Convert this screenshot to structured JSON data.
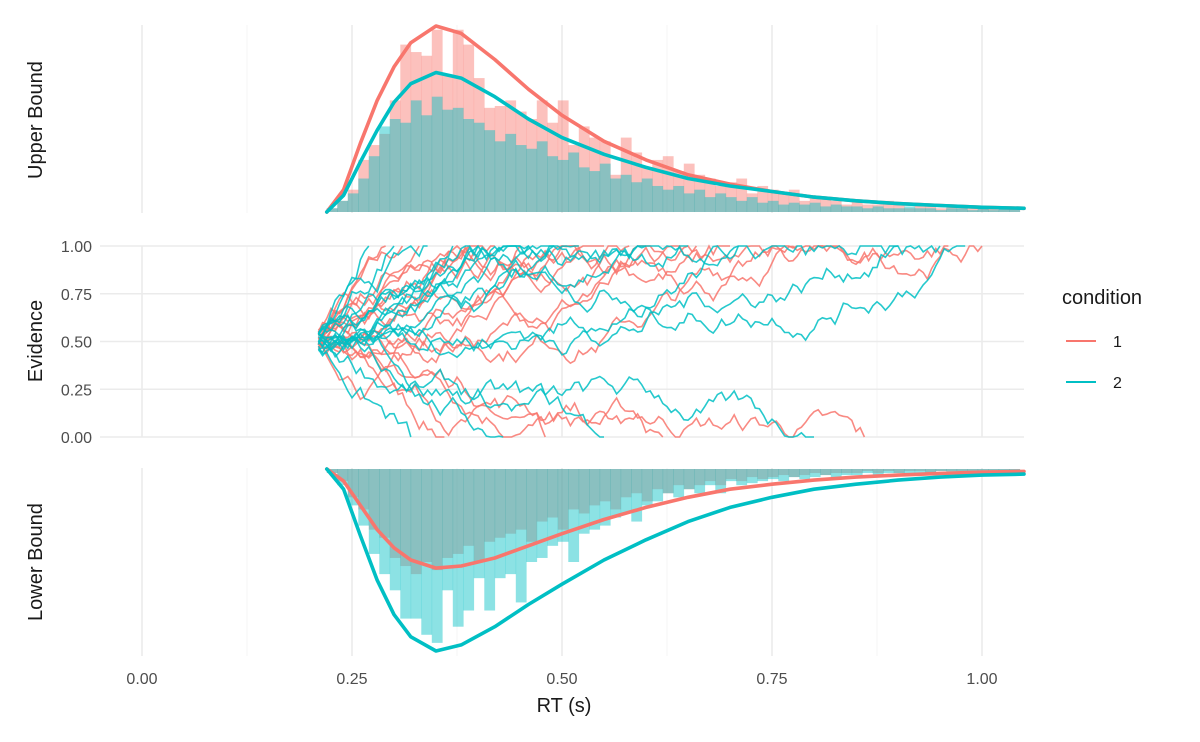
{
  "chart_data": {
    "type": "area",
    "title": "",
    "xlabel": "RT (s)",
    "xlim": [
      -0.05,
      1.05
    ],
    "x_ticks": [
      "0.00",
      "0.25",
      "0.50",
      "0.75",
      "1.00"
    ],
    "x_tick_values": [
      0.0,
      0.25,
      0.5,
      0.75,
      1.0
    ],
    "grid": true,
    "legend": {
      "title": "condition",
      "placement": "right",
      "entries": [
        {
          "label": "1",
          "color": "#F8766D"
        },
        {
          "label": "2",
          "color": "#00BFC4"
        }
      ]
    },
    "panels": [
      {
        "name": "upper",
        "ylabel": "Upper Bound",
        "type": "histogram+density",
        "series": [
          {
            "name": "1",
            "color": "#F8766D",
            "density_curve": {
              "x": [
                0.22,
                0.24,
                0.26,
                0.28,
                0.3,
                0.32,
                0.35,
                0.38,
                0.42,
                0.46,
                0.5,
                0.55,
                0.6,
                0.65,
                0.7,
                0.75,
                0.8,
                0.85,
                0.9,
                0.95,
                1.0,
                1.05
              ],
              "y": [
                0.0,
                0.12,
                0.37,
                0.6,
                0.78,
                0.91,
                1.0,
                0.96,
                0.82,
                0.66,
                0.52,
                0.38,
                0.28,
                0.2,
                0.15,
                0.11,
                0.08,
                0.06,
                0.045,
                0.035,
                0.025,
                0.02
              ]
            },
            "histogram": {
              "bin_start": 0.22,
              "bin_width": 0.0125,
              "heights": [
                0.02,
                0.06,
                0.12,
                0.28,
                0.36,
                0.42,
                0.6,
                0.9,
                0.86,
                0.84,
                0.98,
                0.74,
                0.98,
                0.9,
                0.72,
                0.56,
                0.57,
                0.6,
                0.54,
                0.5,
                0.6,
                0.48,
                0.6,
                0.36,
                0.46,
                0.4,
                0.38,
                0.2,
                0.4,
                0.32,
                0.24,
                0.28,
                0.3,
                0.22,
                0.26,
                0.2,
                0.18,
                0.14,
                0.16,
                0.18,
                0.1,
                0.14,
                0.12,
                0.1,
                0.12,
                0.06,
                0.08,
                0.08,
                0.06,
                0.04,
                0.06,
                0.04,
                0.04,
                0.06,
                0.04,
                0.02,
                0.04,
                0.03,
                0.02,
                0.03,
                0.02,
                0.02,
                0.02,
                0.03,
                0.02,
                0.02
              ]
            }
          },
          {
            "name": "2",
            "color": "#00BFC4",
            "density_curve": {
              "x": [
                0.22,
                0.24,
                0.26,
                0.28,
                0.3,
                0.32,
                0.35,
                0.38,
                0.42,
                0.46,
                0.5,
                0.55,
                0.6,
                0.65,
                0.7,
                0.75,
                0.8,
                0.85,
                0.9,
                0.95,
                1.0,
                1.05
              ],
              "y": [
                0.0,
                0.09,
                0.27,
                0.44,
                0.59,
                0.69,
                0.75,
                0.72,
                0.62,
                0.5,
                0.4,
                0.31,
                0.24,
                0.18,
                0.14,
                0.11,
                0.08,
                0.06,
                0.045,
                0.035,
                0.025,
                0.02
              ]
            },
            "histogram": {
              "bin_start": 0.22,
              "bin_width": 0.0125,
              "heights": [
                0.02,
                0.06,
                0.1,
                0.18,
                0.3,
                0.46,
                0.5,
                0.48,
                0.6,
                0.52,
                0.62,
                0.55,
                0.56,
                0.5,
                0.48,
                0.44,
                0.38,
                0.42,
                0.36,
                0.34,
                0.38,
                0.3,
                0.28,
                0.32,
                0.24,
                0.22,
                0.26,
                0.18,
                0.2,
                0.16,
                0.18,
                0.14,
                0.12,
                0.14,
                0.1,
                0.12,
                0.08,
                0.1,
                0.08,
                0.06,
                0.08,
                0.05,
                0.06,
                0.04,
                0.05,
                0.04,
                0.05,
                0.03,
                0.04,
                0.03,
                0.03,
                0.02,
                0.03,
                0.02,
                0.02,
                0.03,
                0.02,
                0.02,
                0.01,
                0.02,
                0.02,
                0.01,
                0.02,
                0.01,
                0.02,
                0.02
              ]
            }
          }
        ]
      },
      {
        "name": "evidence",
        "ylabel": "Evidence",
        "type": "line",
        "ylim": [
          0,
          1
        ],
        "y_ticks": [
          "0.00",
          "0.25",
          "0.50",
          "0.75",
          "1.00"
        ],
        "y_tick_values": [
          0.0,
          0.25,
          0.5,
          0.75,
          1.0
        ],
        "start_x": 0.21,
        "start_y": 0.5,
        "step_x": 0.005,
        "trace_ends": {
          "1": [
            0.29,
            0.31,
            0.33,
            0.36,
            0.39,
            0.42,
            0.45,
            0.48,
            0.52,
            0.55,
            0.58,
            0.62,
            0.66,
            0.7,
            0.78,
            0.86,
            0.96,
            1.0
          ],
          "2": [
            0.27,
            0.3,
            0.32,
            0.34,
            0.37,
            0.4,
            0.43,
            0.46,
            0.49,
            0.52,
            0.55,
            0.6,
            0.65,
            0.71,
            0.8,
            0.9,
            0.95,
            0.98
          ]
        }
      },
      {
        "name": "lower",
        "ylabel": "Lower Bound",
        "type": "histogram+density",
        "series": [
          {
            "name": "1",
            "color": "#F8766D",
            "density_curve": {
              "x": [
                0.22,
                0.24,
                0.26,
                0.28,
                0.3,
                0.32,
                0.35,
                0.38,
                0.42,
                0.46,
                0.5,
                0.55,
                0.6,
                0.65,
                0.7,
                0.75,
                0.8,
                0.85,
                0.9,
                0.95,
                1.0,
                1.05
              ],
              "y": [
                0.0,
                0.06,
                0.18,
                0.3,
                0.39,
                0.45,
                0.49,
                0.48,
                0.44,
                0.38,
                0.32,
                0.25,
                0.19,
                0.14,
                0.1,
                0.075,
                0.055,
                0.04,
                0.03,
                0.022,
                0.016,
                0.012
              ]
            },
            "histogram": {
              "bin_start": 0.22,
              "bin_width": 0.0125,
              "heights": [
                0.02,
                0.06,
                0.14,
                0.2,
                0.3,
                0.34,
                0.44,
                0.48,
                0.52,
                0.46,
                0.5,
                0.44,
                0.42,
                0.38,
                0.46,
                0.36,
                0.34,
                0.32,
                0.3,
                0.36,
                0.26,
                0.24,
                0.3,
                0.2,
                0.22,
                0.18,
                0.16,
                0.2,
                0.14,
                0.12,
                0.16,
                0.1,
                0.12,
                0.08,
                0.1,
                0.08,
                0.06,
                0.08,
                0.05,
                0.06,
                0.04,
                0.05,
                0.04,
                0.03,
                0.04,
                0.03,
                0.02,
                0.03,
                0.02,
                0.02,
                0.02,
                0.01,
                0.02,
                0.01,
                0.02,
                0.01,
                0.01,
                0.02,
                0.01,
                0.01,
                0.01,
                0.01,
                0.01,
                0.01,
                0.01,
                0.01
              ]
            }
          },
          {
            "name": "2",
            "color": "#00BFC4",
            "density_curve": {
              "x": [
                0.22,
                0.24,
                0.26,
                0.28,
                0.3,
                0.32,
                0.35,
                0.38,
                0.42,
                0.46,
                0.5,
                0.55,
                0.6,
                0.65,
                0.7,
                0.75,
                0.8,
                0.85,
                0.9,
                0.95,
                1.0,
                1.05
              ],
              "y": [
                0.0,
                0.1,
                0.33,
                0.55,
                0.72,
                0.83,
                0.9,
                0.87,
                0.78,
                0.67,
                0.57,
                0.45,
                0.35,
                0.26,
                0.19,
                0.14,
                0.1,
                0.075,
                0.055,
                0.04,
                0.03,
                0.025
              ]
            },
            "histogram": {
              "bin_start": 0.22,
              "bin_width": 0.0125,
              "heights": [
                0.02,
                0.08,
                0.18,
                0.28,
                0.42,
                0.52,
                0.6,
                0.74,
                0.74,
                0.82,
                0.86,
                0.6,
                0.78,
                0.7,
                0.54,
                0.7,
                0.54,
                0.52,
                0.66,
                0.46,
                0.44,
                0.38,
                0.36,
                0.46,
                0.32,
                0.3,
                0.28,
                0.24,
                0.22,
                0.26,
                0.18,
                0.16,
                0.12,
                0.14,
                0.1,
                0.12,
                0.08,
                0.12,
                0.06,
                0.08,
                0.07,
                0.06,
                0.05,
                0.06,
                0.04,
                0.05,
                0.04,
                0.03,
                0.04,
                0.03,
                0.03,
                0.02,
                0.03,
                0.02,
                0.02,
                0.02,
                0.02,
                0.02,
                0.01,
                0.02,
                0.02,
                0.01,
                0.02,
                0.01,
                0.02,
                0.02
              ]
            }
          }
        ]
      }
    ]
  }
}
